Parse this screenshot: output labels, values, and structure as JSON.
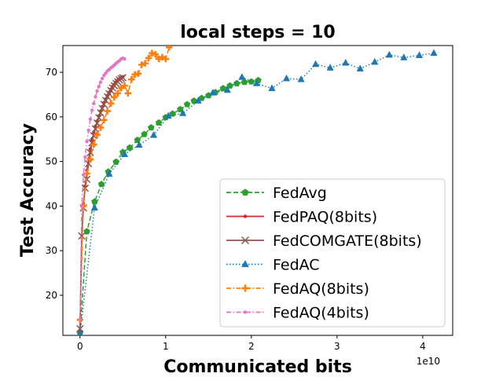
{
  "chart_data": {
    "type": "line",
    "title": "local steps = 10",
    "xlabel": "Communicated bits",
    "ylabel": "Test Accuracy",
    "x_multiplier": "1e10",
    "xlim": [
      -0.2,
      4.35
    ],
    "ylim": [
      11,
      76
    ],
    "xticks": [
      0,
      1,
      2,
      3,
      4
    ],
    "yticks": [
      20,
      30,
      40,
      50,
      60,
      70
    ],
    "grid": false,
    "legend_position": "lower right",
    "series": [
      {
        "name": "FedAvg",
        "color": "#2ca02c",
        "marker": "pentagon",
        "linestyle": "dashed",
        "x": [
          0.0,
          0.08,
          0.17,
          0.25,
          0.33,
          0.42,
          0.5,
          0.58,
          0.67,
          0.75,
          0.83,
          0.92,
          1.0,
          1.08,
          1.17,
          1.25,
          1.33,
          1.42,
          1.5,
          1.58,
          1.67,
          1.75,
          1.83,
          1.92,
          2.0,
          2.08
        ],
        "y": [
          11.5,
          34.3,
          41.0,
          44.9,
          47.7,
          49.9,
          52.1,
          53.1,
          54.8,
          56.1,
          57.6,
          58.7,
          59.9,
          60.7,
          61.7,
          62.8,
          63.6,
          64.2,
          64.8,
          65.5,
          66.4,
          67.0,
          67.5,
          67.8,
          67.9,
          68.2
        ]
      },
      {
        "name": "FedPAQ(8bits)",
        "color": "#d62728",
        "marker": "point",
        "linestyle": "solid",
        "x": [
          0.0,
          0.02,
          0.04,
          0.06,
          0.08,
          0.1,
          0.12,
          0.14,
          0.16,
          0.18,
          0.2,
          0.22,
          0.24,
          0.26,
          0.28,
          0.3,
          0.32,
          0.34,
          0.36,
          0.38,
          0.4,
          0.42,
          0.44,
          0.46,
          0.48,
          0.5
        ],
        "y": [
          12.0,
          33.0,
          40.5,
          44.5,
          48.0,
          50.5,
          52.8,
          54.8,
          56.3,
          57.8,
          59.0,
          60.2,
          61.3,
          62.3,
          63.2,
          64.0,
          64.8,
          65.5,
          66.2,
          66.8,
          67.3,
          67.8,
          68.2,
          68.5,
          68.8,
          69.0
        ]
      },
      {
        "name": "FedCOMGATE(8bits)",
        "color": "#8c564b",
        "marker": "x",
        "linestyle": "solid",
        "x": [
          0.0,
          0.02,
          0.04,
          0.06,
          0.08,
          0.1,
          0.12,
          0.14,
          0.16,
          0.18,
          0.2,
          0.22,
          0.24,
          0.26,
          0.28,
          0.3,
          0.32,
          0.34,
          0.36,
          0.38,
          0.4,
          0.42,
          0.44,
          0.46,
          0.48,
          0.5
        ],
        "y": [
          12.5,
          33.3,
          39.6,
          44.0,
          46.0,
          49.5,
          52.0,
          54.2,
          55.8,
          57.3,
          58.6,
          59.8,
          60.9,
          61.9,
          62.8,
          63.7,
          64.5,
          65.2,
          65.9,
          66.5,
          67.0,
          67.5,
          67.9,
          68.3,
          68.6,
          68.8
        ]
      },
      {
        "name": "FedAC",
        "color": "#1f77b4",
        "marker": "triangle",
        "linestyle": "dotted",
        "x": [
          0.0,
          0.17,
          0.34,
          0.52,
          0.69,
          0.86,
          1.03,
          1.2,
          1.38,
          1.55,
          1.72,
          1.89,
          2.06,
          2.24,
          2.41,
          2.58,
          2.75,
          2.92,
          3.1,
          3.27,
          3.44,
          3.61,
          3.78,
          3.96,
          4.13
        ],
        "y": [
          11.3,
          39.6,
          47.2,
          51.6,
          53.7,
          55.9,
          60.2,
          60.8,
          63.6,
          65.4,
          66.0,
          68.9,
          67.5,
          66.4,
          68.6,
          68.4,
          71.8,
          71.0,
          72.1,
          70.8,
          72.3,
          73.9,
          73.3,
          73.8,
          74.3
        ]
      },
      {
        "name": "FedAQ(8bits)",
        "color": "#ff7f0e",
        "marker": "plus",
        "linestyle": "dashdot",
        "x": [
          0.0,
          0.04,
          0.08,
          0.12,
          0.16,
          0.2,
          0.24,
          0.28,
          0.32,
          0.36,
          0.4,
          0.44,
          0.48,
          0.52,
          0.56,
          0.6,
          0.64,
          0.68,
          0.72,
          0.76,
          0.8,
          0.84,
          0.88,
          0.92,
          0.96,
          1.0,
          1.04
        ],
        "y": [
          14.5,
          40.0,
          47.3,
          50.5,
          53.8,
          56.0,
          57.6,
          59.3,
          61.3,
          63.0,
          64.4,
          65.3,
          66.5,
          67.0,
          65.3,
          68.4,
          69.5,
          69.7,
          71.7,
          72.0,
          73.2,
          74.3,
          74.0,
          73.0,
          73.4,
          73.0,
          75.6
        ]
      },
      {
        "name": "FedAQ(4bits)",
        "color": "#e377c2",
        "marker": "point",
        "linestyle": "dashdot",
        "x": [
          0.0,
          0.02,
          0.04,
          0.06,
          0.08,
          0.1,
          0.12,
          0.14,
          0.16,
          0.18,
          0.2,
          0.22,
          0.24,
          0.26,
          0.28,
          0.3,
          0.32,
          0.34,
          0.36,
          0.38,
          0.4,
          0.42,
          0.44,
          0.46,
          0.48,
          0.5,
          0.52
        ],
        "y": [
          14.5,
          40.0,
          47.0,
          51.0,
          54.5,
          57.0,
          59.5,
          61.5,
          63.0,
          64.5,
          65.8,
          66.8,
          67.8,
          68.6,
          69.3,
          69.8,
          70.3,
          70.6,
          71.0,
          71.3,
          71.6,
          72.0,
          72.3,
          72.6,
          73.0,
          73.2,
          73.0
        ]
      }
    ]
  }
}
